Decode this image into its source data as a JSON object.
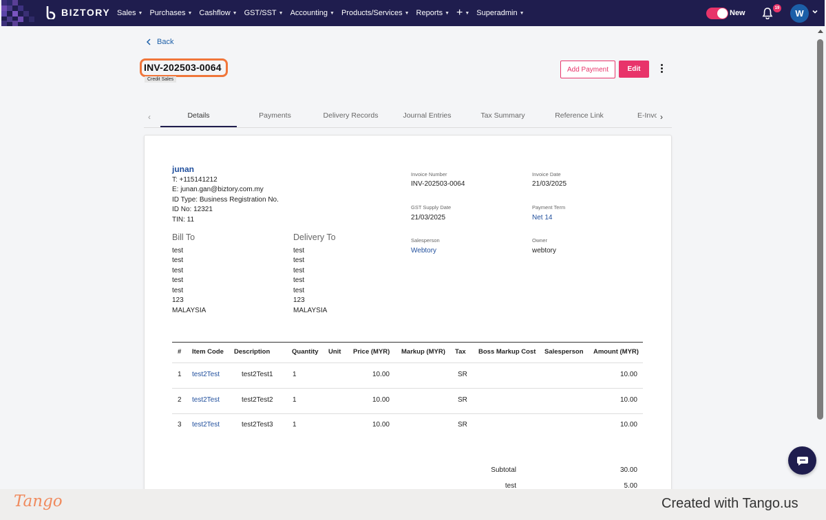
{
  "app": {
    "brand": "BIZTORY",
    "accent_color": "#e8346a",
    "nav_color": "#1f1d4e"
  },
  "nav": {
    "items": [
      "Sales",
      "Purchases",
      "Cashflow",
      "GST/SST",
      "Accounting",
      "Products/Services",
      "Reports",
      "+",
      "Superadmin"
    ],
    "toggle_label": "New",
    "notification_count": "19",
    "avatar_initial": "W"
  },
  "header": {
    "back_label": "Back",
    "invoice_title": "INV-202503-0064",
    "type_chip": "Credit Sales",
    "add_payment_label": "Add Payment",
    "edit_label": "Edit"
  },
  "tabs": [
    "Details",
    "Payments",
    "Delivery Records",
    "Journal Entries",
    "Tax Summary",
    "Reference Link",
    "E-Invoice"
  ],
  "active_tab": "Details",
  "company": {
    "name": "junan",
    "lines": [
      "T: +115141212",
      "E: junan.gan@biztory.com.my",
      "ID Type: Business Registration No.",
      "ID No: 12321",
      "TIN: 11"
    ]
  },
  "bill_to": {
    "heading": "Bill To",
    "lines": [
      "test",
      "test",
      "test",
      "test",
      "test",
      "123",
      "MALAYSIA"
    ]
  },
  "delivery_to": {
    "heading": "Delivery To",
    "lines": [
      "test",
      "test",
      "test",
      "test",
      "test",
      "123",
      "MALAYSIA"
    ]
  },
  "meta": {
    "invoice_number_label": "Invoice Number",
    "invoice_number": "INV-202503-0064",
    "invoice_date_label": "Invoice Date",
    "invoice_date": "21/03/2025",
    "gst_supply_date_label": "GST Supply Date",
    "gst_supply_date": "21/03/2025",
    "payment_term_label": "Payment Term",
    "payment_term": "Net 14",
    "salesperson_label": "Salesperson",
    "salesperson": "Webtory",
    "owner_label": "Owner",
    "owner": "webtory"
  },
  "table": {
    "headers": [
      "#",
      "Item Code",
      "Description",
      "Quantity",
      "Unit",
      "Price (MYR)",
      "Markup (MYR)",
      "Tax",
      "Boss Markup Cost",
      "Salesperson",
      "Amount (MYR)"
    ],
    "rows": [
      [
        "1",
        "test2Test",
        "test2Test1",
        "1",
        "",
        "10.00",
        "",
        "SR",
        "",
        "",
        "10.00"
      ],
      [
        "2",
        "test2Test",
        "test2Test2",
        "1",
        "",
        "10.00",
        "",
        "SR",
        "",
        "",
        "10.00"
      ],
      [
        "3",
        "test2Test",
        "test2Test3",
        "1",
        "",
        "10.00",
        "",
        "SR",
        "",
        "",
        "10.00"
      ]
    ]
  },
  "totals": [
    {
      "label": "Subtotal",
      "value": "30.00"
    },
    {
      "label": "test",
      "value": "5.00"
    }
  ],
  "footer": {
    "brand": "Tango",
    "credit": "Created with Tango.us"
  }
}
